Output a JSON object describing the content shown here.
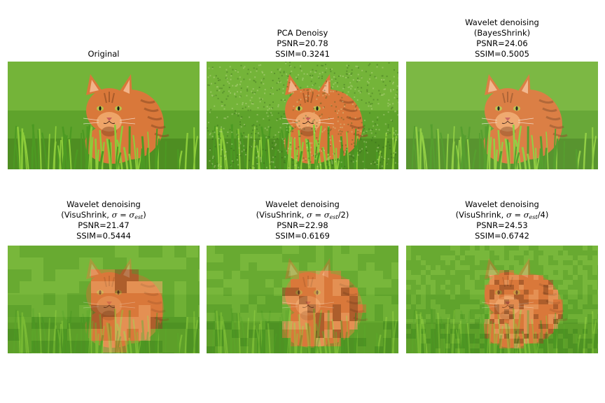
{
  "figure": {
    "panels": [
      {
        "title_lines": [
          "Original"
        ],
        "image": "orange-tabby-cat-in-grass-photo",
        "variant": "original"
      },
      {
        "title_lines": [
          "PCA Denoisy",
          "PSNR=20.78",
          "SSIM=0.3241"
        ],
        "image": "orange-tabby-cat-in-grass-photo",
        "variant": "noisy-textured"
      },
      {
        "title_lines": [
          "Wavelet denoising",
          "(BayesShrink)",
          "PSNR=24.06",
          "SSIM=0.5005"
        ],
        "image": "orange-tabby-cat-in-grass-photo",
        "variant": "smooth"
      },
      {
        "title_prefix": "Wavelet denoising",
        "title_visu": "(VisuShrink, ",
        "title_sigma": "σ = σ",
        "title_sub": "est",
        "title_suffix": ")",
        "psnr": "PSNR=21.47",
        "ssim": "SSIM=0.5444",
        "image": "orange-tabby-cat-in-grass-photo",
        "variant": "blocky-coarse"
      },
      {
        "title_prefix": "Wavelet denoising",
        "title_visu": "(VisuShrink, ",
        "title_sigma": "σ = σ",
        "title_sub": "est",
        "title_suffix": "/2)",
        "psnr": "PSNR=22.98",
        "ssim": "SSIM=0.6169",
        "image": "orange-tabby-cat-in-grass-photo",
        "variant": "blocky-medium"
      },
      {
        "title_prefix": "Wavelet denoising",
        "title_visu": "(VisuShrink, ",
        "title_sigma": "σ = σ",
        "title_sub": "est",
        "title_suffix": "/4)",
        "psnr": "PSNR=24.53",
        "ssim": "SSIM=0.6742",
        "image": "orange-tabby-cat-in-grass-photo",
        "variant": "blocky-fine"
      }
    ]
  },
  "colors": {
    "grass_light": "#7dbb3e",
    "grass_mid": "#5fa32c",
    "grass_dark": "#3f7d1c",
    "cat_orange": "#d9783a",
    "cat_light": "#eea468",
    "cat_dark": "#8a4a22"
  }
}
